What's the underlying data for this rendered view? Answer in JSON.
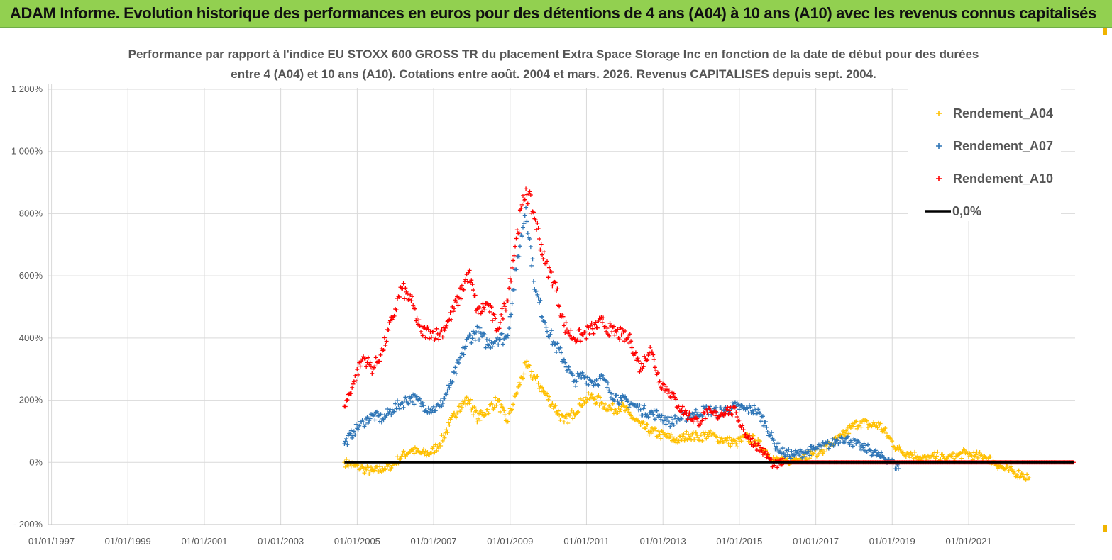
{
  "header": {
    "title": "ADAM Informe. Evolution historique des performances en euros pour des détentions de 4 ans (A04) à 10 ans (A10) avec les revenus connus capitalisés"
  },
  "chart_data": {
    "type": "scatter",
    "title_lines": [
      "Performance par rapport à l'indice EU STOXX 600 GROSS TR  du placement Extra Space Storage Inc en fonction de la date de début pour des durées",
      "entre 4 (A04) et 10 ans (A10). Cotations entre août. 2004 et mars. 2026. Revenus CAPITALISES depuis sept. 2004."
    ],
    "x_ticks": [
      "01/01/1997",
      "01/01/1999",
      "01/01/2001",
      "01/01/2003",
      "01/01/2005",
      "01/01/2007",
      "01/01/2009",
      "01/01/2011",
      "01/01/2013",
      "01/01/2015",
      "01/01/2017",
      "01/01/2019",
      "01/01/2021"
    ],
    "x_range": [
      "1996-12-01",
      "2023-10-15"
    ],
    "y_ticks": [
      "- 200%",
      "0%",
      "200%",
      "400%",
      "600%",
      "800%",
      "1 000%",
      "1 200%"
    ],
    "ylim": [
      -200,
      1200
    ],
    "grid": true,
    "legend_position": "top-right",
    "colors": {
      "A04": "#ffc000",
      "A07": "#2e75b6",
      "A10": "#ff0000",
      "zero": "#000000"
    },
    "legend": [
      "Rendement_A04",
      "Rendement_A07",
      "Rendement_A10",
      "0,0%"
    ],
    "series": [
      {
        "name": "Rendement_A04",
        "points": [
          [
            "2004-09-01",
            0
          ],
          [
            "2004-12-01",
            -10
          ],
          [
            "2005-03-01",
            -20
          ],
          [
            "2005-06-01",
            -30
          ],
          [
            "2005-09-01",
            -20
          ],
          [
            "2005-12-01",
            -10
          ],
          [
            "2006-03-01",
            20
          ],
          [
            "2006-06-01",
            40
          ],
          [
            "2006-09-01",
            30
          ],
          [
            "2006-12-01",
            30
          ],
          [
            "2007-03-01",
            60
          ],
          [
            "2007-06-01",
            120
          ],
          [
            "2007-09-01",
            180
          ],
          [
            "2007-12-01",
            200
          ],
          [
            "2008-03-01",
            140
          ],
          [
            "2008-06-01",
            170
          ],
          [
            "2008-09-01",
            200
          ],
          [
            "2008-12-01",
            130
          ],
          [
            "2009-03-01",
            220
          ],
          [
            "2009-06-01",
            310
          ],
          [
            "2009-09-01",
            270
          ],
          [
            "2009-12-01",
            220
          ],
          [
            "2010-03-01",
            180
          ],
          [
            "2010-06-01",
            130
          ],
          [
            "2010-09-01",
            160
          ],
          [
            "2010-12-01",
            200
          ],
          [
            "2011-03-01",
            210
          ],
          [
            "2011-06-01",
            190
          ],
          [
            "2011-09-01",
            170
          ],
          [
            "2011-12-01",
            180
          ],
          [
            "2012-03-01",
            150
          ],
          [
            "2012-06-01",
            120
          ],
          [
            "2012-09-01",
            100
          ],
          [
            "2012-12-01",
            90
          ],
          [
            "2013-03-01",
            80
          ],
          [
            "2013-06-01",
            70
          ],
          [
            "2013-09-01",
            90
          ],
          [
            "2013-12-01",
            80
          ],
          [
            "2014-03-01",
            90
          ],
          [
            "2014-06-01",
            80
          ],
          [
            "2014-09-01",
            70
          ],
          [
            "2014-12-01",
            60
          ],
          [
            "2015-03-01",
            80
          ],
          [
            "2015-06-01",
            70
          ],
          [
            "2015-09-01",
            40
          ],
          [
            "2015-12-01",
            10
          ],
          [
            "2016-03-01",
            0
          ],
          [
            "2016-06-01",
            10
          ],
          [
            "2016-09-01",
            20
          ],
          [
            "2016-12-01",
            30
          ],
          [
            "2017-03-01",
            40
          ],
          [
            "2017-06-01",
            60
          ],
          [
            "2017-09-01",
            80
          ],
          [
            "2017-12-01",
            110
          ],
          [
            "2018-03-01",
            130
          ],
          [
            "2018-06-01",
            120
          ],
          [
            "2018-09-01",
            120
          ],
          [
            "2018-12-01",
            80
          ],
          [
            "2019-03-01",
            40
          ],
          [
            "2019-06-01",
            30
          ],
          [
            "2019-09-01",
            20
          ],
          [
            "2019-12-01",
            10
          ],
          [
            "2020-03-01",
            20
          ],
          [
            "2020-06-01",
            10
          ],
          [
            "2020-09-01",
            20
          ],
          [
            "2020-12-01",
            30
          ],
          [
            "2021-03-01",
            20
          ],
          [
            "2021-06-01",
            20
          ],
          [
            "2021-09-01",
            0
          ],
          [
            "2021-12-01",
            -20
          ],
          [
            "2022-03-01",
            -30
          ],
          [
            "2022-06-01",
            -40
          ],
          [
            "2022-08-01",
            -50
          ]
        ]
      },
      {
        "name": "Rendement_A07",
        "points": [
          [
            "2004-09-01",
            60
          ],
          [
            "2004-12-01",
            100
          ],
          [
            "2005-03-01",
            130
          ],
          [
            "2005-06-01",
            150
          ],
          [
            "2005-09-01",
            140
          ],
          [
            "2005-12-01",
            170
          ],
          [
            "2006-03-01",
            190
          ],
          [
            "2006-06-01",
            210
          ],
          [
            "2006-09-01",
            190
          ],
          [
            "2006-12-01",
            170
          ],
          [
            "2007-03-01",
            180
          ],
          [
            "2007-06-01",
            240
          ],
          [
            "2007-09-01",
            320
          ],
          [
            "2007-12-01",
            400
          ],
          [
            "2008-03-01",
            420
          ],
          [
            "2008-06-01",
            380
          ],
          [
            "2008-09-01",
            400
          ],
          [
            "2008-12-01",
            400
          ],
          [
            "2009-03-01",
            620
          ],
          [
            "2009-06-01",
            820
          ],
          [
            "2009-09-01",
            550
          ],
          [
            "2009-12-01",
            450
          ],
          [
            "2010-03-01",
            380
          ],
          [
            "2010-06-01",
            330
          ],
          [
            "2010-09-01",
            260
          ],
          [
            "2010-12-01",
            280
          ],
          [
            "2011-03-01",
            260
          ],
          [
            "2011-06-01",
            270
          ],
          [
            "2011-09-01",
            220
          ],
          [
            "2011-12-01",
            200
          ],
          [
            "2012-03-01",
            190
          ],
          [
            "2012-06-01",
            170
          ],
          [
            "2012-09-01",
            160
          ],
          [
            "2012-12-01",
            150
          ],
          [
            "2013-03-01",
            130
          ],
          [
            "2013-06-01",
            140
          ],
          [
            "2013-09-01",
            150
          ],
          [
            "2013-12-01",
            160
          ],
          [
            "2014-03-01",
            170
          ],
          [
            "2014-06-01",
            160
          ],
          [
            "2014-09-01",
            170
          ],
          [
            "2014-12-01",
            180
          ],
          [
            "2015-03-01",
            170
          ],
          [
            "2015-06-01",
            170
          ],
          [
            "2015-09-01",
            130
          ],
          [
            "2015-12-01",
            60
          ],
          [
            "2016-03-01",
            30
          ],
          [
            "2016-06-01",
            25
          ],
          [
            "2016-09-01",
            30
          ],
          [
            "2016-12-01",
            40
          ],
          [
            "2017-03-01",
            50
          ],
          [
            "2017-06-01",
            60
          ],
          [
            "2017-09-01",
            80
          ],
          [
            "2017-12-01",
            70
          ],
          [
            "2018-03-01",
            50
          ],
          [
            "2018-06-01",
            40
          ],
          [
            "2018-09-01",
            20
          ],
          [
            "2018-12-01",
            10
          ],
          [
            "2019-03-01",
            -20
          ]
        ]
      },
      {
        "name": "Rendement_A10",
        "points": [
          [
            "2004-09-01",
            180
          ],
          [
            "2004-12-01",
            260
          ],
          [
            "2005-03-01",
            340
          ],
          [
            "2005-06-01",
            300
          ],
          [
            "2005-09-01",
            360
          ],
          [
            "2005-12-01",
            460
          ],
          [
            "2006-03-01",
            560
          ],
          [
            "2006-06-01",
            520
          ],
          [
            "2006-09-01",
            420
          ],
          [
            "2006-12-01",
            420
          ],
          [
            "2007-03-01",
            410
          ],
          [
            "2007-06-01",
            460
          ],
          [
            "2007-09-01",
            530
          ],
          [
            "2007-12-01",
            610
          ],
          [
            "2008-03-01",
            480
          ],
          [
            "2008-06-01",
            510
          ],
          [
            "2008-09-01",
            430
          ],
          [
            "2008-12-01",
            520
          ],
          [
            "2009-03-01",
            720
          ],
          [
            "2009-06-01",
            880
          ],
          [
            "2009-09-01",
            780
          ],
          [
            "2009-12-01",
            640
          ],
          [
            "2010-03-01",
            580
          ],
          [
            "2010-06-01",
            440
          ],
          [
            "2010-09-01",
            400
          ],
          [
            "2010-12-01",
            410
          ],
          [
            "2011-03-01",
            430
          ],
          [
            "2011-06-01",
            450
          ],
          [
            "2011-09-01",
            420
          ],
          [
            "2011-12-01",
            410
          ],
          [
            "2012-03-01",
            390
          ],
          [
            "2012-06-01",
            300
          ],
          [
            "2012-09-01",
            370
          ],
          [
            "2012-12-01",
            260
          ],
          [
            "2013-03-01",
            230
          ],
          [
            "2013-06-01",
            180
          ],
          [
            "2013-09-01",
            150
          ],
          [
            "2013-12-01",
            130
          ],
          [
            "2014-03-01",
            160
          ],
          [
            "2014-06-01",
            150
          ],
          [
            "2014-09-01",
            170
          ],
          [
            "2014-12-01",
            160
          ],
          [
            "2015-03-01",
            90
          ],
          [
            "2015-06-01",
            60
          ],
          [
            "2015-09-01",
            30
          ],
          [
            "2015-12-01",
            -10
          ],
          [
            "2016-03-01",
            0
          ],
          [
            "2016-09-01",
            0
          ],
          [
            "2017-03-01",
            0
          ],
          [
            "2017-09-01",
            0
          ],
          [
            "2018-03-01",
            0
          ],
          [
            "2018-09-01",
            0
          ],
          [
            "2019-03-01",
            0
          ],
          [
            "2019-09-01",
            0
          ],
          [
            "2020-03-01",
            0
          ],
          [
            "2020-09-01",
            0
          ],
          [
            "2021-03-01",
            0
          ],
          [
            "2021-09-01",
            0
          ],
          [
            "2022-03-01",
            0
          ],
          [
            "2022-09-01",
            0
          ],
          [
            "2023-03-01",
            0
          ],
          [
            "2023-10-01",
            0
          ]
        ]
      }
    ],
    "zero_line": {
      "label": "0,0%",
      "from": "2004-09-01",
      "to": "2023-10-01",
      "value": 0
    }
  }
}
